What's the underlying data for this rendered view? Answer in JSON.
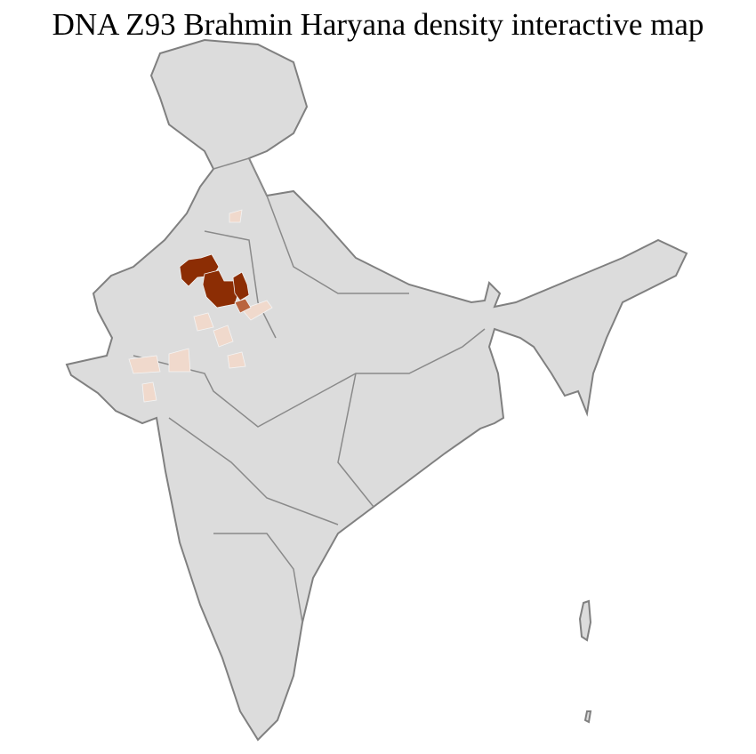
{
  "title": "DNA Z93 Brahmin Haryana density interactive map",
  "colors": {
    "background_region": "#dcdcdc",
    "district_border": "#f4f4f4",
    "state_border": "#808080",
    "high_density": "#8c2d04",
    "medium_density": "#b9643e",
    "low_density": "#f0d9cc"
  }
}
